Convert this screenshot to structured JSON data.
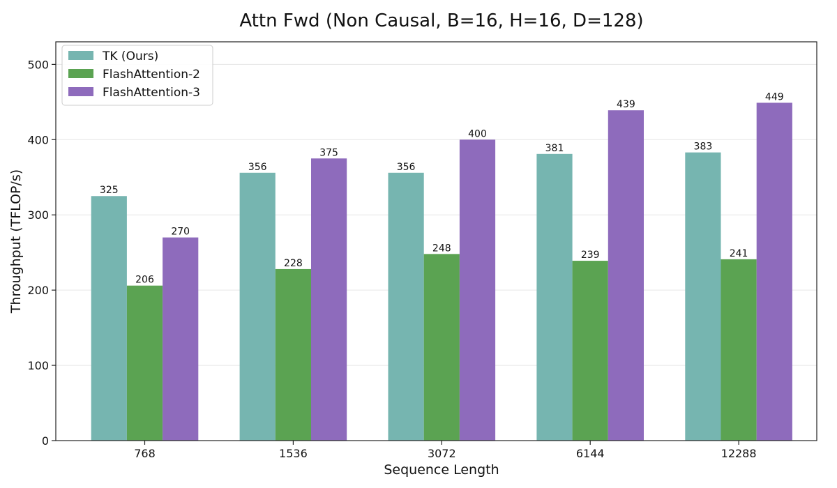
{
  "chart_data": {
    "type": "bar",
    "title": "Attn Fwd (Non Causal, B=16, H=16, D=128)",
    "xlabel": "Sequence Length",
    "ylabel": "Throughput (TFLOP/s)",
    "categories": [
      "768",
      "1536",
      "3072",
      "6144",
      "12288"
    ],
    "ylim": [
      0,
      530
    ],
    "yticks": [
      0,
      100,
      200,
      300,
      400,
      500
    ],
    "grid": "horizontal",
    "legend_position": "top-left",
    "series": [
      {
        "name": "TK (Ours)",
        "color": "#76b5b0",
        "values": [
          325,
          356,
          356,
          381,
          383
        ]
      },
      {
        "name": "FlashAttention-2",
        "color": "#5ba352",
        "values": [
          206,
          228,
          248,
          239,
          241
        ]
      },
      {
        "name": "FlashAttention-3",
        "color": "#8e6bbc",
        "values": [
          270,
          375,
          400,
          439,
          449
        ]
      }
    ]
  }
}
